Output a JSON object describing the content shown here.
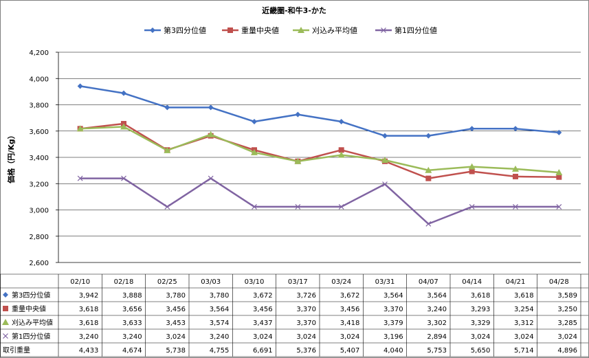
{
  "chart_data": {
    "type": "line",
    "title": "近畿圏-和牛3-かた",
    "ylabel": "価格（円/Kg）",
    "xlabel": "",
    "ylim": [
      2600,
      4200
    ],
    "y_ticks": [
      "2,600",
      "2,800",
      "3,000",
      "3,200",
      "3,400",
      "3,600",
      "3,800",
      "4,000",
      "4,200"
    ],
    "grid": true,
    "legend_position": "top",
    "categories": [
      "02/10",
      "02/18",
      "02/25",
      "03/03",
      "03/10",
      "03/17",
      "03/24",
      "03/31",
      "04/07",
      "04/14",
      "04/21",
      "04/28"
    ],
    "series": [
      {
        "name": "第3四分位値",
        "color": "#4472c4",
        "marker": "diamond",
        "values": [
          3942,
          3888,
          3780,
          3780,
          3672,
          3726,
          3672,
          3564,
          3564,
          3618,
          3618,
          3589
        ],
        "labels": [
          "3,942",
          "3,888",
          "3,780",
          "3,780",
          "3,672",
          "3,726",
          "3,672",
          "3,564",
          "3,564",
          "3,618",
          "3,618",
          "3,589"
        ]
      },
      {
        "name": "重量中央値",
        "color": "#c0504d",
        "marker": "square",
        "values": [
          3618,
          3656,
          3456,
          3564,
          3456,
          3370,
          3456,
          3370,
          3240,
          3293,
          3254,
          3250
        ],
        "labels": [
          "3,618",
          "3,656",
          "3,456",
          "3,564",
          "3,456",
          "3,370",
          "3,456",
          "3,370",
          "3,240",
          "3,293",
          "3,254",
          "3,250"
        ]
      },
      {
        "name": "刈込み平均値",
        "color": "#9bbb59",
        "marker": "triangle",
        "values": [
          3618,
          3633,
          3453,
          3574,
          3437,
          3370,
          3418,
          3379,
          3302,
          3329,
          3312,
          3285
        ],
        "labels": [
          "3,618",
          "3,633",
          "3,453",
          "3,574",
          "3,437",
          "3,370",
          "3,418",
          "3,379",
          "3,302",
          "3,329",
          "3,312",
          "3,285"
        ]
      },
      {
        "name": "第1四分位値",
        "color": "#8064a2",
        "marker": "x",
        "values": [
          3240,
          3240,
          3024,
          3240,
          3024,
          3024,
          3024,
          3196,
          2894,
          3024,
          3024,
          3024
        ],
        "labels": [
          "3,240",
          "3,240",
          "3,024",
          "3,240",
          "3,024",
          "3,024",
          "3,024",
          "3,196",
          "2,894",
          "3,024",
          "3,024",
          "3,024"
        ]
      }
    ],
    "table_extra_rows": [
      {
        "name": "取引重量",
        "labels": [
          "4,433",
          "4,674",
          "5,738",
          "4,755",
          "6,691",
          "5,376",
          "5,407",
          "4,040",
          "5,753",
          "5,650",
          "5,714",
          "4,896"
        ]
      }
    ]
  }
}
